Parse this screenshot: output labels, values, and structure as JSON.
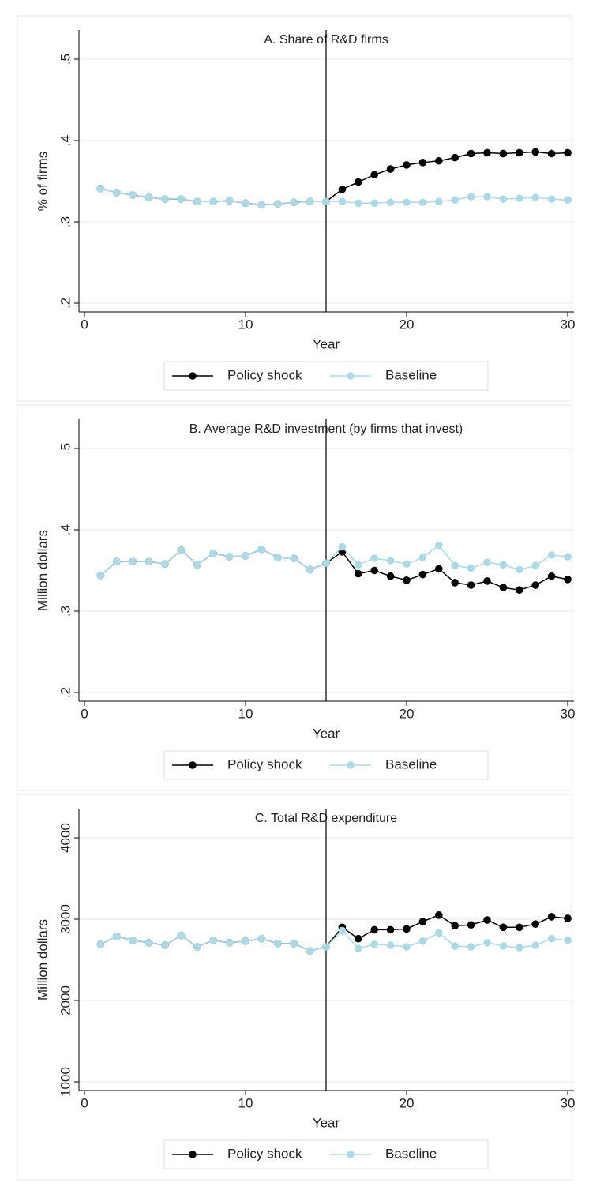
{
  "chart_data": [
    {
      "type": "line",
      "title": "A. Share of R&D firms",
      "xlabel": "Year",
      "ylabel": "% of firms",
      "x": [
        1,
        2,
        3,
        4,
        5,
        6,
        7,
        8,
        9,
        10,
        11,
        12,
        13,
        14,
        15,
        16,
        17,
        18,
        19,
        20,
        21,
        22,
        23,
        24,
        25,
        26,
        27,
        28,
        29,
        30
      ],
      "xlim": [
        0,
        30
      ],
      "xticks": [
        0,
        10,
        20,
        30
      ],
      "ylim": [
        0.2,
        0.5
      ],
      "yticks": [
        {
          "value": 0.2,
          "label": ".2"
        },
        {
          "value": 0.3,
          "label": ".3"
        },
        {
          "value": 0.4,
          "label": ".4"
        },
        {
          "value": 0.5,
          "label": ".5"
        }
      ],
      "grid": true,
      "vline": 15,
      "series": [
        {
          "name": "Policy shock",
          "color": "#000000",
          "values": [
            0.341,
            0.336,
            0.333,
            0.33,
            0.328,
            0.328,
            0.325,
            0.325,
            0.326,
            0.323,
            0.321,
            0.322,
            0.324,
            0.325,
            0.325,
            0.34,
            0.349,
            0.358,
            0.365,
            0.37,
            0.373,
            0.375,
            0.379,
            0.384,
            0.385,
            0.384,
            0.385,
            0.386,
            0.384,
            0.385
          ]
        },
        {
          "name": "Baseline",
          "color": "#add8e6",
          "values": [
            0.341,
            0.336,
            0.333,
            0.33,
            0.328,
            0.328,
            0.325,
            0.325,
            0.326,
            0.323,
            0.321,
            0.322,
            0.324,
            0.325,
            0.325,
            0.325,
            0.323,
            0.323,
            0.324,
            0.324,
            0.324,
            0.325,
            0.327,
            0.331,
            0.331,
            0.328,
            0.329,
            0.33,
            0.328,
            0.327
          ]
        }
      ]
    },
    {
      "type": "line",
      "title": "B. Average R&D investment (by firms that invest)",
      "xlabel": "Year",
      "ylabel": "Million dollars",
      "x": [
        1,
        2,
        3,
        4,
        5,
        6,
        7,
        8,
        9,
        10,
        11,
        12,
        13,
        14,
        15,
        16,
        17,
        18,
        19,
        20,
        21,
        22,
        23,
        24,
        25,
        26,
        27,
        28,
        29,
        30
      ],
      "xlim": [
        0,
        30
      ],
      "xticks": [
        0,
        10,
        20,
        30
      ],
      "ylim": [
        0.2,
        0.5
      ],
      "yticks": [
        {
          "value": 0.2,
          "label": ".2"
        },
        {
          "value": 0.3,
          "label": ".3"
        },
        {
          "value": 0.4,
          "label": ".4"
        },
        {
          "value": 0.5,
          "label": ".5"
        }
      ],
      "grid": true,
      "vline": 15,
      "series": [
        {
          "name": "Policy shock",
          "color": "#000000",
          "values": [
            0.344,
            0.361,
            0.361,
            0.361,
            0.358,
            0.375,
            0.357,
            0.371,
            0.367,
            0.368,
            0.376,
            0.366,
            0.365,
            0.351,
            0.359,
            0.373,
            0.346,
            0.35,
            0.343,
            0.338,
            0.345,
            0.352,
            0.335,
            0.332,
            0.337,
            0.329,
            0.326,
            0.332,
            0.343,
            0.339
          ]
        },
        {
          "name": "Baseline",
          "color": "#add8e6",
          "values": [
            0.344,
            0.361,
            0.361,
            0.361,
            0.358,
            0.375,
            0.357,
            0.371,
            0.367,
            0.368,
            0.376,
            0.366,
            0.365,
            0.351,
            0.359,
            0.379,
            0.357,
            0.365,
            0.362,
            0.358,
            0.366,
            0.381,
            0.356,
            0.353,
            0.36,
            0.357,
            0.351,
            0.356,
            0.369,
            0.367
          ]
        }
      ]
    },
    {
      "type": "line",
      "title": "C. Total R&D expenditure",
      "xlabel": "Year",
      "ylabel": "Million dollars",
      "x": [
        1,
        2,
        3,
        4,
        5,
        6,
        7,
        8,
        9,
        10,
        11,
        12,
        13,
        14,
        15,
        16,
        17,
        18,
        19,
        20,
        21,
        22,
        23,
        24,
        25,
        26,
        27,
        28,
        29,
        30
      ],
      "xlim": [
        0,
        30
      ],
      "xticks": [
        0,
        10,
        20,
        30
      ],
      "ylim": [
        1000,
        4000
      ],
      "yticks": [
        1000,
        2000,
        3000,
        4000
      ],
      "grid": true,
      "vline": 15,
      "series": [
        {
          "name": "Policy shock",
          "color": "#000000",
          "values": [
            2690,
            2790,
            2740,
            2710,
            2680,
            2800,
            2660,
            2740,
            2710,
            2730,
            2760,
            2700,
            2700,
            2610,
            2660,
            2900,
            2760,
            2870,
            2870,
            2880,
            2970,
            3050,
            2920,
            2930,
            2990,
            2900,
            2900,
            2940,
            3030,
            3010
          ]
        },
        {
          "name": "Baseline",
          "color": "#add8e6",
          "values": [
            2690,
            2790,
            2740,
            2710,
            2680,
            2800,
            2660,
            2740,
            2710,
            2730,
            2760,
            2700,
            2700,
            2610,
            2660,
            2860,
            2640,
            2690,
            2680,
            2660,
            2730,
            2830,
            2670,
            2660,
            2710,
            2670,
            2650,
            2680,
            2760,
            2740
          ]
        }
      ]
    }
  ]
}
